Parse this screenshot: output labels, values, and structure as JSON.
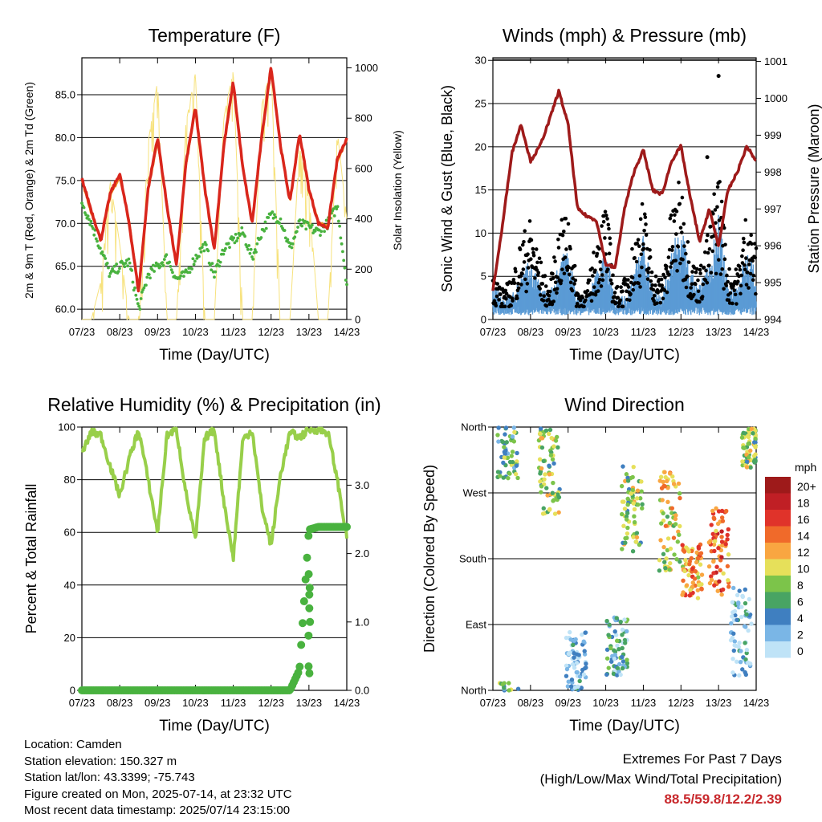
{
  "colors": {
    "temp2m": "#d9261c",
    "temp9m": "#f08a1d",
    "dewpoint": "#49b23f",
    "solar": "#f7e27d",
    "wind_sonic": "#5b9bd5",
    "gust": "#000000",
    "pressure": "#9e1a1a",
    "rh": "#98cf4a",
    "precip": "#49b23f"
  },
  "x_ticks": [
    "07/23",
    "08/23",
    "09/23",
    "10/23",
    "11/23",
    "12/23",
    "13/23",
    "14/23"
  ],
  "chart_data": [
    {
      "id": "temperature",
      "type": "line",
      "title": "Temperature (F)",
      "xlabel": "Time (Day/UTC)",
      "ylabel": "2m & 9m T (Red, Orange) & 2m Td (Green)",
      "ylabel_right": "Solar Insolation (Yellow)",
      "ylim": [
        58.8,
        89.3
      ],
      "ylim_right": [
        0,
        1040
      ],
      "yticks": [
        "60.0",
        "65.0",
        "70.0",
        "75.0",
        "80.0",
        "85.0"
      ],
      "yticks_right": [
        "0",
        "200",
        "400",
        "600",
        "800",
        "1000"
      ],
      "grid": true,
      "x": [
        0,
        0.25,
        0.5,
        0.75,
        1,
        1.25,
        1.5,
        1.75,
        2,
        2.25,
        2.5,
        2.75,
        3,
        3.25,
        3.5,
        3.75,
        4,
        4.25,
        4.5,
        4.75,
        5,
        5.25,
        5.5,
        5.75,
        6,
        6.25,
        6.5,
        6.75,
        7
      ],
      "series": [
        {
          "name": "2m T",
          "values": [
            75.2,
            71.5,
            68.0,
            73.5,
            75.8,
            70.0,
            62.0,
            74.0,
            80.0,
            72.0,
            65.0,
            77.0,
            83.5,
            74.0,
            67.0,
            79.0,
            86.5,
            76.5,
            70.0,
            80.0,
            88.3,
            79.0,
            72.5,
            80.5,
            74.0,
            70.0,
            69.5,
            77.5,
            79.8
          ]
        },
        {
          "name": "9m T",
          "values": [
            75.0,
            71.2,
            68.2,
            73.2,
            75.5,
            70.2,
            62.3,
            73.8,
            79.6,
            72.1,
            65.2,
            76.8,
            83.2,
            74.1,
            67.2,
            78.8,
            86.2,
            76.6,
            70.2,
            79.7,
            88.1,
            79.1,
            72.6,
            80.2,
            74.1,
            70.1,
            69.6,
            77.2,
            79.6
          ]
        },
        {
          "name": "2m Td",
          "values": [
            72.5,
            70.0,
            67.0,
            64.0,
            65.0,
            65.5,
            60.0,
            64.0,
            65.0,
            66.0,
            63.5,
            64.0,
            66.0,
            67.5,
            64.0,
            67.0,
            68.0,
            69.0,
            66.0,
            69.0,
            71.0,
            70.5,
            67.0,
            70.0,
            69.5,
            69.0,
            70.0,
            72.0,
            63.0
          ]
        },
        {
          "name": "Solar",
          "axis": "right",
          "values": [
            0,
            0,
            150,
            550,
            300,
            0,
            0,
            700,
            950,
            0,
            0,
            780,
            980,
            0,
            0,
            800,
            990,
            0,
            0,
            850,
            1000,
            0,
            0,
            700,
            500,
            0,
            0,
            750,
            400
          ]
        }
      ]
    },
    {
      "id": "winds",
      "type": "line",
      "title": "Winds (mph) & Pressure (mb)",
      "xlabel": "Time (Day/UTC)",
      "ylabel": "Sonic Wind & Gust (Blue, Black)",
      "ylabel_right": "Station Pressure (Maroon)",
      "ylim": [
        0,
        30.3
      ],
      "ylim_right": [
        994,
        1001.1
      ],
      "yticks": [
        "0",
        "5",
        "10",
        "15",
        "20",
        "25",
        "30"
      ],
      "yticks_right": [
        "994",
        "995",
        "996",
        "997",
        "998",
        "999",
        "1000",
        "1001"
      ],
      "grid": true,
      "x": [
        0,
        0.25,
        0.5,
        0.75,
        1,
        1.25,
        1.5,
        1.75,
        2,
        2.25,
        2.5,
        2.75,
        3,
        3.25,
        3.5,
        3.75,
        4,
        4.25,
        4.5,
        4.75,
        5,
        5.25,
        5.5,
        5.75,
        6,
        6.25,
        6.5,
        6.75,
        7
      ],
      "series": [
        {
          "name": "Sonic Wind",
          "values": [
            3,
            2,
            2,
            4,
            5,
            3,
            2,
            5,
            6,
            2,
            2,
            4,
            6,
            2,
            2,
            4,
            7,
            3,
            2,
            6,
            8,
            4,
            3,
            5,
            9,
            3,
            3,
            6,
            4
          ]
        },
        {
          "name": "Gust",
          "values": [
            5,
            3,
            4,
            8,
            10,
            6,
            3,
            9,
            11,
            3,
            3,
            8,
            12,
            3,
            4,
            8,
            12,
            5,
            4,
            11,
            14,
            6,
            5,
            9,
            16,
            5,
            5,
            11,
            7
          ]
        },
        {
          "name": "Pressure",
          "axis": "right",
          "values": [
            994.8,
            996.5,
            998.5,
            999.3,
            998.3,
            998.7,
            999.4,
            1000.2,
            999.3,
            997.0,
            996.8,
            996.7,
            995.5,
            995.4,
            997.0,
            998.0,
            998.6,
            997.5,
            997.4,
            998.3,
            998.7,
            997.3,
            996.1,
            997.0,
            996.0,
            997.5,
            998.0,
            998.7,
            998.3
          ]
        }
      ],
      "scatter_outliers": [
        [
          6.0,
          28.2
        ],
        [
          5.7,
          18.8
        ]
      ]
    },
    {
      "id": "humidity",
      "type": "line",
      "title": "Relative Humidity (%) & Precipitation (in)",
      "xlabel": "Time (Day/UTC)",
      "ylabel": "Percent & Total Rainfall",
      "ylim": [
        0,
        100
      ],
      "ylim_right": [
        0,
        3.85
      ],
      "yticks": [
        "0",
        "20",
        "40",
        "60",
        "80",
        "100"
      ],
      "yticks_right": [
        "0.0",
        "1.0",
        "2.0",
        "3.0"
      ],
      "grid": true,
      "x": [
        0,
        0.25,
        0.5,
        0.75,
        1,
        1.25,
        1.5,
        1.75,
        2,
        2.25,
        2.5,
        2.75,
        3,
        3.25,
        3.5,
        3.75,
        4,
        4.25,
        4.5,
        4.75,
        5,
        5.25,
        5.5,
        5.75,
        6,
        6.25,
        6.5,
        6.75,
        7
      ],
      "series": [
        {
          "name": "RH",
          "values": [
            90,
            98,
            97,
            85,
            74,
            88,
            99,
            80,
            60,
            97,
            99,
            75,
            57,
            96,
            99,
            72,
            50,
            95,
            99,
            70,
            55,
            82,
            98,
            96,
            99,
            99,
            98,
            80,
            58
          ]
        },
        {
          "name": "Total Precipitation",
          "axis": "right",
          "values": [
            0,
            0,
            0,
            0,
            0,
            0,
            0,
            0,
            0,
            0,
            0,
            0,
            0,
            0,
            0,
            0,
            0,
            0,
            0,
            0,
            0,
            0,
            0,
            0.3,
            2.35,
            2.39,
            2.39,
            2.39,
            2.39
          ]
        }
      ]
    },
    {
      "id": "direction",
      "type": "scatter",
      "title": "Wind Direction",
      "xlabel": "Time (Day/UTC)",
      "ylabel": "Direction (Colored By Speed)",
      "ylim": [
        0,
        360
      ],
      "yticks": [
        "North",
        "East",
        "South",
        "West",
        "North"
      ],
      "grid": true,
      "legend_title": "mph",
      "legend_labels": [
        "20+",
        "18",
        "16",
        "14",
        "12",
        "10",
        "8",
        "6",
        "4",
        "2",
        "0"
      ],
      "legend_colors": [
        "#9e1a1a",
        "#c01f25",
        "#e0332a",
        "#f06a2a",
        "#f9a641",
        "#e6e05a",
        "#7cc44a",
        "#48a463",
        "#3f7fc0",
        "#7ab6e6",
        "#bfe3f7"
      ],
      "clusters": [
        {
          "day": 0.4,
          "dir": 330,
          "spread": 40,
          "speed": 3
        },
        {
          "day": 1.5,
          "dir": 300,
          "spread": 60,
          "speed": 4
        },
        {
          "day": 2.2,
          "dir": 40,
          "spread": 40,
          "speed": 1
        },
        {
          "day": 3.3,
          "dir": 60,
          "spread": 40,
          "speed": 2
        },
        {
          "day": 3.7,
          "dir": 250,
          "spread": 60,
          "speed": 4
        },
        {
          "day": 4.7,
          "dir": 230,
          "spread": 70,
          "speed": 5
        },
        {
          "day": 5.3,
          "dir": 160,
          "spread": 40,
          "speed": 6
        },
        {
          "day": 6.0,
          "dir": 190,
          "spread": 60,
          "speed": 7
        },
        {
          "day": 6.6,
          "dir": 80,
          "spread": 60,
          "speed": 1
        },
        {
          "day": 6.9,
          "dir": 330,
          "spread": 30,
          "speed": 4
        }
      ]
    }
  ],
  "info": {
    "location": "Location: Camden",
    "elevation": "Station elevation: 150.327 m",
    "latlon": "Station lat/lon: 43.3399; -75.743",
    "created": "Figure created on Mon, 2025-07-14, at 23:32 UTC",
    "recent": "Most recent data timestamp: 2025/07/14 23:15:00"
  },
  "extremes": {
    "title": "Extremes For Past 7 Days",
    "subtitle": "(High/Low/Max Wind/Total Precipitation)",
    "values": "88.5/59.8/12.2/2.39"
  }
}
